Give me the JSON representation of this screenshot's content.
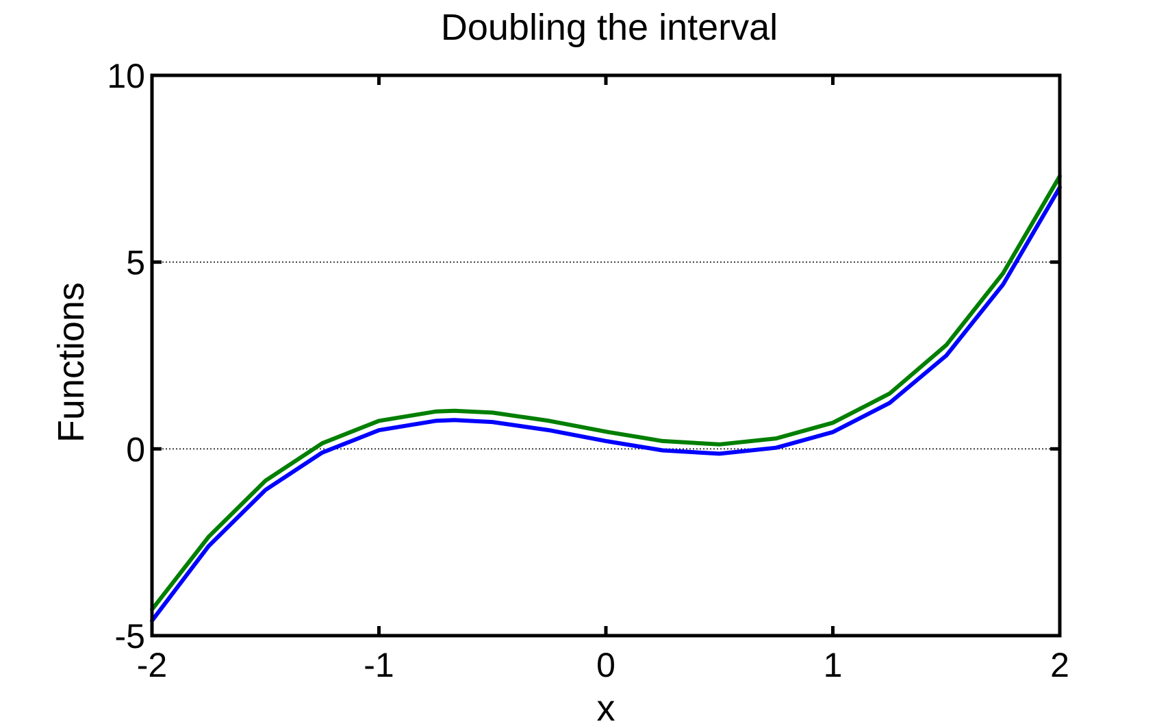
{
  "chart_data": {
    "type": "line",
    "title": "Doubling the interval",
    "xlabel": "x",
    "ylabel": "Functions",
    "xlim": [
      -2,
      2
    ],
    "ylim": [
      -5,
      10
    ],
    "xticks": [
      -2,
      -1,
      0,
      1,
      2
    ],
    "yticks": [
      -5,
      0,
      5,
      10
    ],
    "xtick_labels": [
      "-2",
      "-1",
      "0",
      "1",
      "2"
    ],
    "ytick_labels": [
      "-5",
      "0",
      "5",
      "10"
    ],
    "grid": {
      "y_dotted_at": [
        0,
        5
      ]
    },
    "series": [
      {
        "color": "#0000ff",
        "x": [
          -2.0,
          -1.75,
          -1.5,
          -1.25,
          -1.0,
          -0.75,
          -0.667,
          -0.5,
          -0.25,
          0.0,
          0.25,
          0.5,
          0.75,
          1.0,
          1.25,
          1.5,
          1.75,
          2.0
        ],
        "y": [
          -4.6,
          -2.6,
          -1.1,
          -0.1,
          0.5,
          0.75,
          0.77,
          0.72,
          0.5,
          0.21,
          -0.04,
          -0.13,
          0.03,
          0.45,
          1.23,
          2.5,
          4.4,
          7.0
        ]
      },
      {
        "color": "#007f00",
        "x": [
          -2.0,
          -1.75,
          -1.5,
          -1.25,
          -1.0,
          -0.75,
          -0.667,
          -0.5,
          -0.25,
          0.0,
          0.25,
          0.5,
          0.75,
          1.0,
          1.25,
          1.5,
          1.75,
          2.0
        ],
        "y": [
          -4.3,
          -2.35,
          -0.85,
          0.15,
          0.75,
          1.0,
          1.02,
          0.97,
          0.75,
          0.46,
          0.21,
          0.12,
          0.28,
          0.7,
          1.48,
          2.78,
          4.7,
          7.3
        ]
      }
    ]
  }
}
